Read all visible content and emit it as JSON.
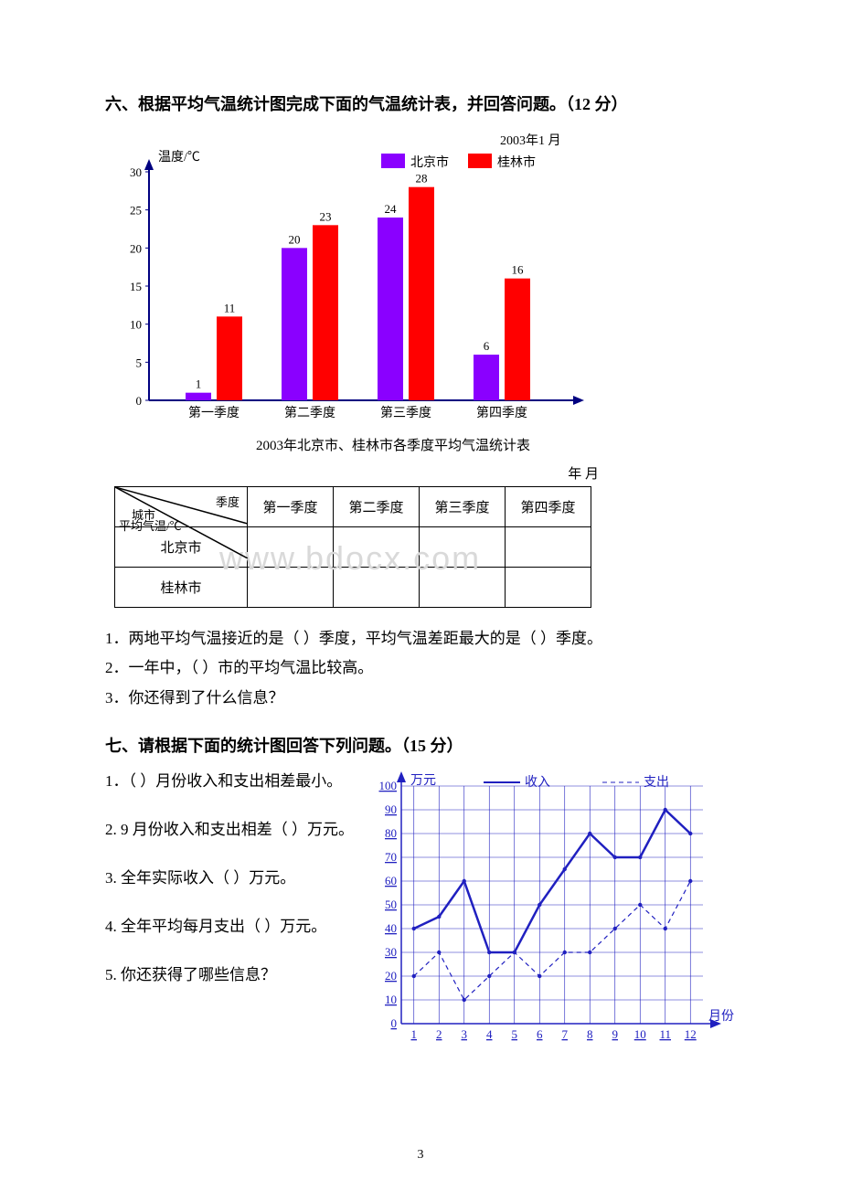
{
  "section6": {
    "title": "六、根据平均气温统计图完成下面的气温统计表，并回答问题。（12 分）",
    "chart": {
      "type": "bar",
      "ylabel": "温度/℃",
      "legend_date": "2003年1 月",
      "legend_items": [
        {
          "label": "北京市",
          "color": "#8a00ff"
        },
        {
          "label": "桂林市",
          "color": "#ff0000"
        }
      ],
      "categories": [
        "第一季度",
        "第二季度",
        "第三季度",
        "第四季度"
      ],
      "beijing": [
        1,
        20,
        24,
        6
      ],
      "guilin": [
        11,
        23,
        28,
        16
      ],
      "ylim": [
        0,
        30
      ],
      "ytick_step": 5,
      "bar_colors": [
        "#8a00ff",
        "#ff0000"
      ],
      "label_fontsize": 13,
      "axis_color": "#000080"
    },
    "caption": "2003年北京市、桂林市各季度平均气温统计表",
    "table_date": "年      月",
    "table": {
      "diag_top": "季度",
      "diag_mid": "平均气温/℃",
      "diag_bot": "城市",
      "cols": [
        "第一季度",
        "第二季度",
        "第三季度",
        "第四季度"
      ],
      "rows": [
        "北京市",
        "桂林市"
      ]
    },
    "q1": "1．两地平均气温接近的是（      ）季度，平均气温差距最大的是（     ）季度。",
    "q2": "2．一年中，（       ）市的平均气温比较高。",
    "q3": "3．你还得到了什么信息？"
  },
  "section7": {
    "title": "七、请根据下面的统计图回答下列问题。（15 分）",
    "q1": "1．（     ）月份收入和支出相差最小。",
    "q2": "2. 9 月份收入和支出相差（     ）万元。",
    "q3": "3. 全年实际收入（       ）万元。",
    "q4": "4. 全年平均每月支出（      ）万元。",
    "q5": "5. 你还获得了哪些信息？",
    "chart": {
      "type": "line",
      "ylabel": "万元",
      "xlabel": "月份",
      "legend": [
        {
          "label": "收入",
          "style": "solid"
        },
        {
          "label": "支出",
          "style": "dash"
        }
      ],
      "x": [
        1,
        2,
        3,
        4,
        5,
        6,
        7,
        8,
        9,
        10,
        11,
        12
      ],
      "income": [
        40,
        45,
        60,
        30,
        30,
        50,
        65,
        80,
        70,
        70,
        90,
        80
      ],
      "expense": [
        20,
        30,
        10,
        20,
        30,
        20,
        30,
        30,
        40,
        50,
        40,
        60
      ],
      "ylim": [
        0,
        100
      ],
      "ytick_step": 10,
      "line_color": "#2020c0",
      "grid_color": "#2020c0",
      "text_color": "#2020c0"
    }
  },
  "pagenum": "3"
}
